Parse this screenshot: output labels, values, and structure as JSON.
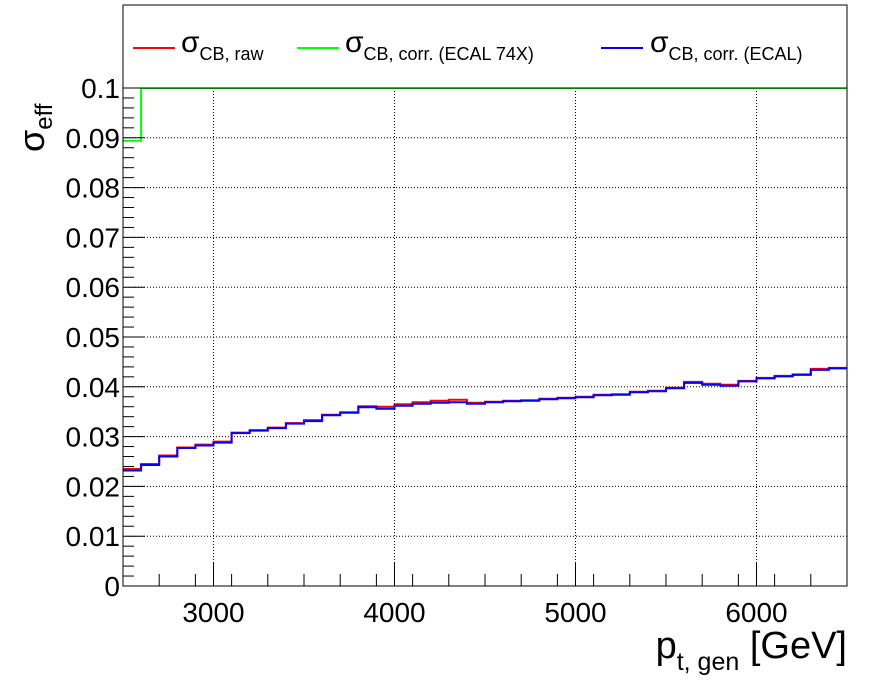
{
  "chart_data": {
    "type": "line",
    "style": "step",
    "xlim": [
      2500,
      6500
    ],
    "ylim": [
      0,
      0.1
    ],
    "x_ticks": [
      "3000",
      "4000",
      "5000",
      "6000"
    ],
    "y_ticks": [
      "0",
      "0.01",
      "0.02",
      "0.03",
      "0.04",
      "0.05",
      "0.06",
      "0.07",
      "0.08",
      "0.09",
      "0.1"
    ],
    "grid": true,
    "legend_position": "top",
    "xlabel": {
      "main": "p",
      "sub": "t, gen",
      "unit": " [GeV]"
    },
    "ylabel": {
      "main": "σ",
      "sub": "eff"
    },
    "bin_edges": [
      2500,
      2600,
      2700,
      2800,
      2900,
      3000,
      3100,
      3200,
      3300,
      3400,
      3500,
      3600,
      3700,
      3800,
      3900,
      4000,
      4100,
      4200,
      4300,
      4400,
      4500,
      4600,
      4700,
      4800,
      4900,
      5000,
      5100,
      5200,
      5300,
      5400,
      5500,
      5600,
      5700,
      5800,
      5900,
      6000,
      6100,
      6200,
      6300,
      6400,
      6500
    ],
    "series": [
      {
        "name_main": "σ",
        "name_sub": "CB, raw",
        "color": "#ff0000",
        "values": [
          0.0235,
          0.0245,
          0.0262,
          0.0278,
          0.0284,
          0.029,
          0.0308,
          0.0313,
          0.0318,
          0.0327,
          0.0333,
          0.0344,
          0.0349,
          0.0361,
          0.036,
          0.0365,
          0.0369,
          0.0372,
          0.0374,
          0.0368,
          0.037,
          0.0372,
          0.0373,
          0.0376,
          0.0378,
          0.038,
          0.0384,
          0.0385,
          0.039,
          0.0392,
          0.0398,
          0.041,
          0.0406,
          0.0404,
          0.0412,
          0.0418,
          0.0422,
          0.0425,
          0.0436,
          0.0438
        ]
      },
      {
        "name_main": "σ",
        "name_sub": "CB, corr. (ECAL 74X)",
        "color": "#00ff00",
        "values": [
          0.0894,
          0.1,
          0.1,
          0.1,
          0.1,
          0.1,
          0.1,
          0.1,
          0.1,
          0.1,
          0.1,
          0.1,
          0.1,
          0.1,
          0.1,
          0.1,
          0.1,
          0.1,
          0.1,
          0.1,
          0.1,
          0.1,
          0.1,
          0.1,
          0.1,
          0.1,
          0.1,
          0.1,
          0.1,
          0.1,
          0.1,
          0.1,
          0.1,
          0.1,
          0.1,
          0.1,
          0.1,
          0.1,
          0.1,
          0.1
        ]
      },
      {
        "name_main": "σ",
        "name_sub": "CB, corr. (ECAL)",
        "color": "#0000ff",
        "values": [
          0.0232,
          0.0243,
          0.026,
          0.0277,
          0.0282,
          0.0288,
          0.0307,
          0.0312,
          0.0317,
          0.0326,
          0.0331,
          0.0343,
          0.0348,
          0.0359,
          0.0356,
          0.0362,
          0.0366,
          0.0368,
          0.0369,
          0.0366,
          0.0369,
          0.0371,
          0.0372,
          0.0375,
          0.0377,
          0.0379,
          0.0383,
          0.0384,
          0.0389,
          0.0391,
          0.0397,
          0.0408,
          0.0404,
          0.0402,
          0.0411,
          0.0417,
          0.0421,
          0.0424,
          0.0434,
          0.0437
        ]
      }
    ]
  }
}
